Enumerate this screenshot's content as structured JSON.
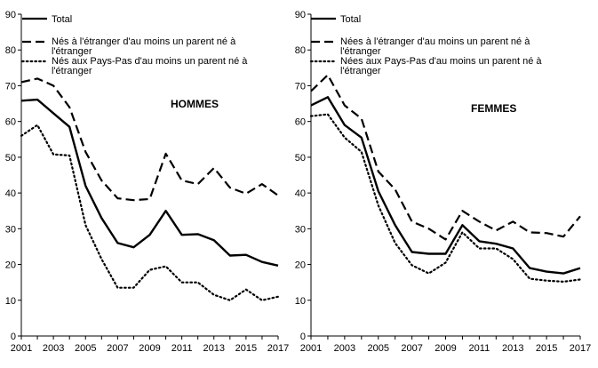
{
  "chart_data": [
    {
      "type": "line",
      "title": "HOMMES",
      "x": [
        2001,
        2002,
        2003,
        2004,
        2005,
        2006,
        2007,
        2008,
        2009,
        2010,
        2011,
        2012,
        2013,
        2014,
        2015,
        2016,
        2017
      ],
      "x_tick_labels": [
        "2001",
        "2003",
        "2005",
        "2007",
        "2009",
        "2011",
        "2013",
        "2015",
        "2017"
      ],
      "y_tick_labels": [
        "0",
        "10",
        "20",
        "30",
        "40",
        "50",
        "60",
        "70",
        "80",
        "90"
      ],
      "ylim": [
        0,
        90
      ],
      "series": [
        {
          "name": "Total",
          "style": "solid",
          "values": [
            65.8,
            66.1,
            62.3,
            58.5,
            42.0,
            33.0,
            26.0,
            24.8,
            28.3,
            35.0,
            28.3,
            28.5,
            26.8,
            22.5,
            22.7,
            20.7,
            19.7
          ]
        },
        {
          "name": "Nés à l'étranger d'au moins un parent né à l'étranger",
          "style": "dashed",
          "values": [
            71.0,
            72.0,
            70.0,
            64.0,
            51.5,
            43.5,
            38.5,
            38.0,
            38.3,
            51.0,
            43.5,
            42.5,
            47.0,
            41.5,
            39.8,
            42.5,
            39.3
          ]
        },
        {
          "name": "Nés aux Pays-Pas d'au moins un parent né à l'étranger",
          "style": "dotted",
          "values": [
            56.0,
            59.0,
            50.8,
            50.5,
            31.0,
            21.5,
            13.5,
            13.5,
            18.5,
            19.5,
            15.0,
            15.0,
            11.5,
            10.0,
            13.0,
            10.0,
            11.0
          ]
        }
      ]
    },
    {
      "type": "line",
      "title": "FEMMES",
      "x": [
        2001,
        2002,
        2003,
        2004,
        2005,
        2006,
        2007,
        2008,
        2009,
        2010,
        2011,
        2012,
        2013,
        2014,
        2015,
        2016,
        2017
      ],
      "x_tick_labels": [
        "2001",
        "2003",
        "2005",
        "2007",
        "2009",
        "2011",
        "2013",
        "2015",
        "2017"
      ],
      "y_tick_labels": [
        "0",
        "10",
        "20",
        "30",
        "40",
        "50",
        "60",
        "70",
        "80",
        "90"
      ],
      "ylim": [
        0,
        90
      ],
      "series": [
        {
          "name": "Total",
          "style": "solid",
          "values": [
            64.5,
            66.8,
            59.0,
            55.5,
            40.5,
            31.0,
            23.5,
            23.0,
            23.0,
            31.0,
            26.5,
            25.8,
            24.5,
            19.0,
            18.0,
            17.5,
            19.0
          ]
        },
        {
          "name": "Nées à l'étranger d'au moins un parent né à l'étranger",
          "style": "dashed",
          "values": [
            68.5,
            73.0,
            64.5,
            60.8,
            46.0,
            41.0,
            32.0,
            30.0,
            27.0,
            35.0,
            32.0,
            29.5,
            32.0,
            29.0,
            28.8,
            27.8,
            33.5
          ]
        },
        {
          "name": "Nées aux Pays-Pas d'au moins un parent né à l'étranger",
          "style": "dotted",
          "values": [
            61.5,
            62.0,
            55.5,
            51.5,
            36.5,
            26.0,
            19.8,
            17.5,
            20.5,
            29.0,
            24.5,
            24.5,
            21.5,
            16.0,
            15.5,
            15.2,
            15.8
          ]
        }
      ]
    }
  ]
}
